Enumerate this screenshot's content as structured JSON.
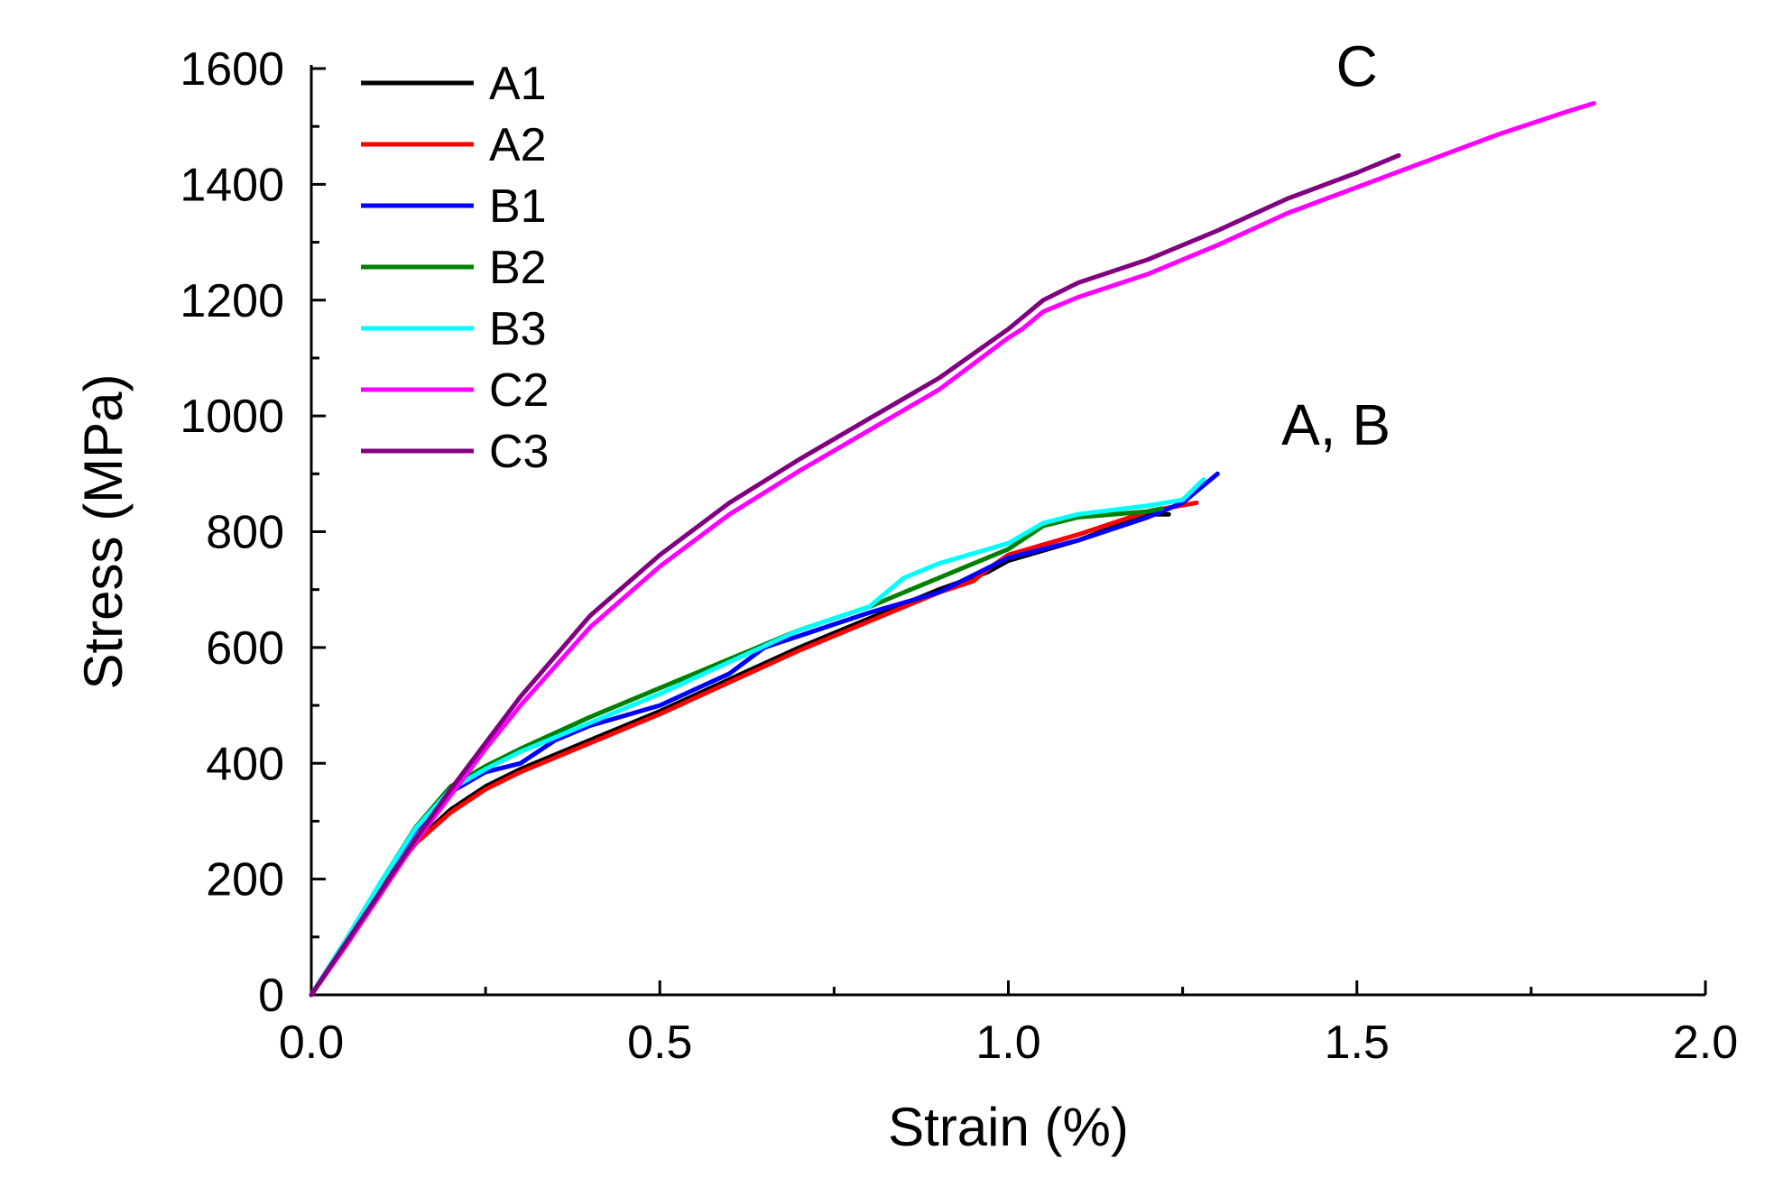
{
  "chart_data": {
    "type": "line",
    "title": "",
    "xlabel": "Strain (%)",
    "ylabel": "Stress (MPa)",
    "xlim": [
      0,
      2.0
    ],
    "ylim": [
      0,
      1600
    ],
    "xticks": [
      "0.0",
      "0.5",
      "1.0",
      "1.5",
      "2.0"
    ],
    "yticks": [
      "0",
      "200",
      "400",
      "600",
      "800",
      "1000",
      "1200",
      "1400",
      "1600"
    ],
    "grid": false,
    "legend_position": "top-left",
    "annotations": [
      {
        "text": "C",
        "x": 1.5,
        "y": 1570
      },
      {
        "text": "A, B",
        "x": 1.47,
        "y": 950
      }
    ],
    "series": [
      {
        "name": "A1",
        "color": "#000000",
        "points": [
          [
            0,
            0
          ],
          [
            0.05,
            90
          ],
          [
            0.1,
            185
          ],
          [
            0.15,
            265
          ],
          [
            0.2,
            320
          ],
          [
            0.25,
            360
          ],
          [
            0.3,
            390
          ],
          [
            0.4,
            440
          ],
          [
            0.5,
            490
          ],
          [
            0.6,
            545
          ],
          [
            0.7,
            600
          ],
          [
            0.8,
            650
          ],
          [
            0.9,
            700
          ],
          [
            0.97,
            730
          ],
          [
            1.0,
            750
          ],
          [
            1.1,
            785
          ],
          [
            1.2,
            830
          ],
          [
            1.23,
            830
          ]
        ]
      },
      {
        "name": "A2",
        "color": "#ff0000",
        "points": [
          [
            0,
            0
          ],
          [
            0.05,
            90
          ],
          [
            0.1,
            185
          ],
          [
            0.15,
            262
          ],
          [
            0.2,
            315
          ],
          [
            0.25,
            355
          ],
          [
            0.3,
            385
          ],
          [
            0.4,
            435
          ],
          [
            0.5,
            485
          ],
          [
            0.6,
            540
          ],
          [
            0.7,
            595
          ],
          [
            0.8,
            645
          ],
          [
            0.9,
            695
          ],
          [
            0.95,
            715
          ],
          [
            0.97,
            735
          ],
          [
            1.0,
            760
          ],
          [
            1.1,
            795
          ],
          [
            1.2,
            835
          ],
          [
            1.27,
            850
          ]
        ]
      },
      {
        "name": "B1",
        "color": "#0000ff",
        "points": [
          [
            0,
            0
          ],
          [
            0.05,
            95
          ],
          [
            0.1,
            195
          ],
          [
            0.15,
            285
          ],
          [
            0.2,
            350
          ],
          [
            0.25,
            385
          ],
          [
            0.3,
            400
          ],
          [
            0.35,
            440
          ],
          [
            0.4,
            465
          ],
          [
            0.5,
            500
          ],
          [
            0.6,
            555
          ],
          [
            0.65,
            600
          ],
          [
            0.7,
            620
          ],
          [
            0.8,
            660
          ],
          [
            0.9,
            695
          ],
          [
            1.0,
            755
          ],
          [
            1.1,
            785
          ],
          [
            1.2,
            825
          ],
          [
            1.25,
            850
          ],
          [
            1.3,
            900
          ]
        ]
      },
      {
        "name": "B2",
        "color": "#008000",
        "points": [
          [
            0,
            0
          ],
          [
            0.05,
            95
          ],
          [
            0.1,
            195
          ],
          [
            0.15,
            290
          ],
          [
            0.2,
            360
          ],
          [
            0.25,
            395
          ],
          [
            0.3,
            425
          ],
          [
            0.4,
            480
          ],
          [
            0.5,
            530
          ],
          [
            0.6,
            580
          ],
          [
            0.7,
            630
          ],
          [
            0.8,
            670
          ],
          [
            0.9,
            720
          ],
          [
            1.0,
            770
          ],
          [
            1.05,
            810
          ],
          [
            1.1,
            825
          ],
          [
            1.2,
            835
          ],
          [
            1.22,
            840
          ]
        ]
      },
      {
        "name": "B3",
        "color": "#00ffff",
        "points": [
          [
            0,
            0
          ],
          [
            0.05,
            95
          ],
          [
            0.1,
            195
          ],
          [
            0.15,
            288
          ],
          [
            0.2,
            355
          ],
          [
            0.25,
            390
          ],
          [
            0.3,
            420
          ],
          [
            0.4,
            470
          ],
          [
            0.5,
            520
          ],
          [
            0.6,
            575
          ],
          [
            0.7,
            630
          ],
          [
            0.8,
            670
          ],
          [
            0.85,
            720
          ],
          [
            0.9,
            745
          ],
          [
            1.0,
            780
          ],
          [
            1.05,
            815
          ],
          [
            1.1,
            830
          ],
          [
            1.2,
            845
          ],
          [
            1.25,
            855
          ],
          [
            1.28,
            890
          ]
        ]
      },
      {
        "name": "C2",
        "color": "#ff00ff",
        "points": [
          [
            0,
            0
          ],
          [
            0.05,
            85
          ],
          [
            0.1,
            175
          ],
          [
            0.15,
            265
          ],
          [
            0.2,
            345
          ],
          [
            0.25,
            425
          ],
          [
            0.3,
            500
          ],
          [
            0.4,
            635
          ],
          [
            0.5,
            740
          ],
          [
            0.6,
            830
          ],
          [
            0.7,
            905
          ],
          [
            0.8,
            975
          ],
          [
            0.9,
            1045
          ],
          [
            1.0,
            1135
          ],
          [
            1.02,
            1150
          ],
          [
            1.05,
            1180
          ],
          [
            1.1,
            1205
          ],
          [
            1.2,
            1245
          ],
          [
            1.3,
            1295
          ],
          [
            1.4,
            1350
          ],
          [
            1.5,
            1395
          ],
          [
            1.6,
            1440
          ],
          [
            1.7,
            1485
          ],
          [
            1.8,
            1525
          ],
          [
            1.84,
            1540
          ]
        ]
      },
      {
        "name": "C3",
        "color": "#800080",
        "points": [
          [
            0,
            0
          ],
          [
            0.05,
            90
          ],
          [
            0.1,
            180
          ],
          [
            0.15,
            270
          ],
          [
            0.2,
            355
          ],
          [
            0.25,
            435
          ],
          [
            0.3,
            515
          ],
          [
            0.4,
            655
          ],
          [
            0.5,
            760
          ],
          [
            0.6,
            850
          ],
          [
            0.7,
            925
          ],
          [
            0.8,
            995
          ],
          [
            0.9,
            1065
          ],
          [
            1.0,
            1150
          ],
          [
            1.02,
            1170
          ],
          [
            1.05,
            1200
          ],
          [
            1.1,
            1230
          ],
          [
            1.2,
            1270
          ],
          [
            1.3,
            1320
          ],
          [
            1.4,
            1375
          ],
          [
            1.5,
            1420
          ],
          [
            1.56,
            1450
          ]
        ]
      }
    ]
  }
}
